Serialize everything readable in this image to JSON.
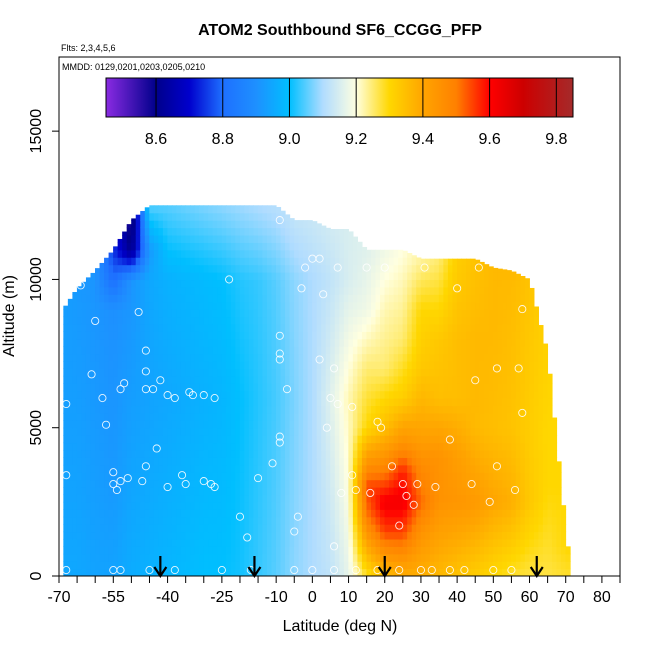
{
  "chart_data": {
    "type": "heatmap",
    "title": "ATOM2 Southbound SF6_CCGG_PFP",
    "subtitle_flights": "Flts: 2,3,4,5,6",
    "subtitle_dates": "MMDD: 0129,0201,0203,0205,0210",
    "xlabel": "Latitude (deg N)",
    "ylabel": "Altitude (m)",
    "xlim": [
      -70,
      85
    ],
    "ylim": [
      0,
      17500
    ],
    "x_ticks": [
      -70,
      -55,
      -40,
      -25,
      -10,
      0,
      10,
      20,
      30,
      40,
      50,
      60,
      70,
      80
    ],
    "x_tick_labels": [
      "-70",
      "-55",
      "-40",
      "-25",
      "-10",
      "0",
      "10",
      "20",
      "30",
      "40",
      "50",
      "60",
      "70",
      "80"
    ],
    "x_minor_ticks": [
      -65,
      -60,
      -50,
      -45,
      -35,
      -30,
      -20,
      -15,
      -5,
      5,
      15,
      25,
      35,
      45,
      55,
      65,
      75,
      85
    ],
    "y_ticks": [
      0,
      5000,
      10000,
      15000
    ],
    "y_tick_labels": [
      "0",
      "5000",
      "10000",
      "15000"
    ],
    "colorbar": {
      "range": [
        8.45,
        9.85
      ],
      "ticks": [
        8.6,
        8.8,
        9.0,
        9.2,
        9.4,
        9.6,
        9.8
      ],
      "tick_labels": [
        "8.6",
        "8.8",
        "9.0",
        "9.2",
        "9.4",
        "9.6",
        "9.8"
      ],
      "dividers": [
        8.6,
        8.8,
        9.0,
        9.2,
        9.4,
        9.6,
        9.8
      ],
      "stops": [
        {
          "v": 8.45,
          "c": "#8a2be2"
        },
        {
          "v": 8.6,
          "c": "#00008b"
        },
        {
          "v": 8.7,
          "c": "#0000cd"
        },
        {
          "v": 8.8,
          "c": "#1e6fff"
        },
        {
          "v": 8.9,
          "c": "#1e90ff"
        },
        {
          "v": 9.0,
          "c": "#00bfff"
        },
        {
          "v": 9.1,
          "c": "#b0dcff"
        },
        {
          "v": 9.2,
          "c": "#ffffe0"
        },
        {
          "v": 9.3,
          "c": "#ffd700"
        },
        {
          "v": 9.4,
          "c": "#ffa500"
        },
        {
          "v": 9.5,
          "c": "#ff8000"
        },
        {
          "v": 9.6,
          "c": "#ff0000"
        },
        {
          "v": 9.7,
          "c": "#cd0000"
        },
        {
          "v": 9.85,
          "c": "#a52a2a"
        }
      ]
    },
    "columns": [
      {
        "x": -68.8,
        "top": 9000,
        "v": [
          [
            0,
            8.95
          ],
          [
            6000,
            8.93
          ],
          [
            9000,
            8.93
          ]
        ]
      },
      {
        "x": -65,
        "top": 9700,
        "v": [
          [
            0,
            8.95
          ],
          [
            6000,
            8.93
          ],
          [
            9700,
            8.92
          ]
        ]
      },
      {
        "x": -60,
        "top": 10300,
        "v": [
          [
            0,
            8.94
          ],
          [
            6000,
            8.92
          ],
          [
            10300,
            8.91
          ]
        ]
      },
      {
        "x": -55,
        "top": 11000,
        "v": [
          [
            0,
            8.94
          ],
          [
            3000,
            8.92
          ],
          [
            6000,
            8.91
          ],
          [
            9000,
            8.9
          ],
          [
            10000,
            8.8
          ],
          [
            11000,
            8.75
          ]
        ]
      },
      {
        "x": -50,
        "top": 12000,
        "v": [
          [
            0,
            8.96
          ],
          [
            6000,
            8.93
          ],
          [
            10000,
            8.91
          ],
          [
            11000,
            8.6
          ],
          [
            12000,
            8.55
          ]
        ]
      },
      {
        "x": -45,
        "top": 12500,
        "v": [
          [
            0,
            8.97
          ],
          [
            6000,
            8.94
          ],
          [
            10000,
            8.95
          ],
          [
            11000,
            8.92
          ],
          [
            12500,
            9.05
          ]
        ]
      },
      {
        "x": -40,
        "top": 12500,
        "v": [
          [
            0,
            8.98
          ],
          [
            6000,
            8.95
          ],
          [
            10000,
            8.97
          ],
          [
            12500,
            9.05
          ]
        ]
      },
      {
        "x": -35,
        "top": 12500,
        "v": [
          [
            0,
            8.99
          ],
          [
            6000,
            8.96
          ],
          [
            10000,
            8.98
          ],
          [
            12500,
            9.06
          ]
        ]
      },
      {
        "x": -30,
        "top": 12500,
        "v": [
          [
            0,
            9.0
          ],
          [
            6000,
            8.97
          ],
          [
            10000,
            8.99
          ],
          [
            12500,
            9.07
          ]
        ]
      },
      {
        "x": -25,
        "top": 12500,
        "v": [
          [
            0,
            9.0
          ],
          [
            6000,
            8.98
          ],
          [
            10000,
            9.0
          ],
          [
            12500,
            9.08
          ]
        ]
      },
      {
        "x": -20,
        "top": 12500,
        "v": [
          [
            0,
            9.01
          ],
          [
            6000,
            9.0
          ],
          [
            10000,
            9.02
          ],
          [
            12500,
            9.09
          ]
        ]
      },
      {
        "x": -15,
        "top": 12500,
        "v": [
          [
            0,
            9.03
          ],
          [
            6000,
            9.02
          ],
          [
            10000,
            9.03
          ],
          [
            12500,
            9.1
          ]
        ]
      },
      {
        "x": -10,
        "top": 12500,
        "v": [
          [
            0,
            9.05
          ],
          [
            6000,
            9.04
          ],
          [
            10000,
            9.05
          ],
          [
            12500,
            9.11
          ]
        ]
      },
      {
        "x": -5,
        "top": 12000,
        "v": [
          [
            0,
            9.08
          ],
          [
            6000,
            9.07
          ],
          [
            10000,
            9.08
          ],
          [
            12000,
            9.12
          ]
        ]
      },
      {
        "x": 0,
        "top": 12000,
        "v": [
          [
            0,
            9.1
          ],
          [
            6000,
            9.1
          ],
          [
            10000,
            9.1
          ],
          [
            12000,
            9.13
          ]
        ]
      },
      {
        "x": 5,
        "top": 11700,
        "v": [
          [
            0,
            9.12
          ],
          [
            6000,
            9.16
          ],
          [
            10000,
            9.12
          ],
          [
            11700,
            9.14
          ]
        ]
      },
      {
        "x": 10,
        "top": 11700,
        "v": [
          [
            0,
            9.17
          ],
          [
            3000,
            9.2
          ],
          [
            6000,
            9.22
          ],
          [
            10000,
            9.15
          ],
          [
            11700,
            9.15
          ]
        ]
      },
      {
        "x": 15,
        "top": 11000,
        "v": [
          [
            0,
            9.28
          ],
          [
            2000,
            9.5
          ],
          [
            3000,
            9.55
          ],
          [
            5000,
            9.3
          ],
          [
            7000,
            9.25
          ],
          [
            9000,
            9.18
          ],
          [
            11000,
            9.16
          ]
        ]
      },
      {
        "x": 20,
        "top": 11000,
        "v": [
          [
            0,
            9.35
          ],
          [
            1500,
            9.55
          ],
          [
            2500,
            9.62
          ],
          [
            3500,
            9.5
          ],
          [
            5000,
            9.35
          ],
          [
            7000,
            9.25
          ],
          [
            9000,
            9.22
          ],
          [
            11000,
            9.18
          ]
        ]
      },
      {
        "x": 25,
        "top": 11000,
        "v": [
          [
            0,
            9.38
          ],
          [
            1500,
            9.55
          ],
          [
            2500,
            9.62
          ],
          [
            3500,
            9.58
          ],
          [
            4500,
            9.45
          ],
          [
            6000,
            9.32
          ],
          [
            8000,
            9.25
          ],
          [
            11000,
            9.2
          ]
        ]
      },
      {
        "x": 30,
        "top": 10700,
        "v": [
          [
            0,
            9.38
          ],
          [
            1500,
            9.45
          ],
          [
            2500,
            9.52
          ],
          [
            3500,
            9.48
          ],
          [
            5000,
            9.4
          ],
          [
            7000,
            9.33
          ],
          [
            9000,
            9.3
          ],
          [
            10700,
            9.23
          ]
        ]
      },
      {
        "x": 35,
        "top": 10700,
        "v": [
          [
            0,
            9.36
          ],
          [
            2500,
            9.45
          ],
          [
            4000,
            9.45
          ],
          [
            6000,
            9.35
          ],
          [
            8000,
            9.33
          ],
          [
            10700,
            9.25
          ]
        ]
      },
      {
        "x": 40,
        "top": 10700,
        "v": [
          [
            0,
            9.34
          ],
          [
            2500,
            9.44
          ],
          [
            4000,
            9.42
          ],
          [
            6000,
            9.35
          ],
          [
            8000,
            9.35
          ],
          [
            10700,
            9.32
          ]
        ]
      },
      {
        "x": 45,
        "top": 10700,
        "v": [
          [
            0,
            9.32
          ],
          [
            2500,
            9.43
          ],
          [
            5000,
            9.36
          ],
          [
            8000,
            9.36
          ],
          [
            10700,
            9.34
          ]
        ]
      },
      {
        "x": 50,
        "top": 10400,
        "v": [
          [
            0,
            9.3
          ],
          [
            2500,
            9.4
          ],
          [
            5000,
            9.35
          ],
          [
            8000,
            9.36
          ],
          [
            10400,
            9.36
          ]
        ]
      },
      {
        "x": 55,
        "top": 10300,
        "v": [
          [
            0,
            9.28
          ],
          [
            2500,
            9.38
          ],
          [
            5000,
            9.34
          ],
          [
            8000,
            9.35
          ],
          [
            10300,
            9.36
          ]
        ]
      },
      {
        "x": 60,
        "top": 10000,
        "v": [
          [
            0,
            9.27
          ],
          [
            2500,
            9.33
          ],
          [
            5000,
            9.32
          ],
          [
            8000,
            9.33
          ],
          [
            10000,
            9.34
          ]
        ]
      },
      {
        "x": 65,
        "top": 7500,
        "v": [
          [
            0,
            9.27
          ],
          [
            3000,
            9.3
          ],
          [
            5000,
            9.3
          ],
          [
            7500,
            9.31
          ]
        ]
      },
      {
        "x": 70.5,
        "top": 1000,
        "v": [
          [
            0,
            9.28
          ],
          [
            1000,
            9.3
          ]
        ]
      }
    ],
    "samples": [
      [
        -68,
        3400
      ],
      [
        -68,
        5800
      ],
      [
        -68,
        200
      ],
      [
        -64,
        9800
      ],
      [
        -61,
        6800
      ],
      [
        -60,
        8600
      ],
      [
        -58,
        6000
      ],
      [
        -57,
        5100
      ],
      [
        -55,
        3500
      ],
      [
        -55,
        3100
      ],
      [
        -54,
        2900
      ],
      [
        -53,
        3200
      ],
      [
        -51,
        3300
      ],
      [
        -55,
        200
      ],
      [
        -53,
        200
      ],
      [
        -53,
        6300
      ],
      [
        -52,
        6500
      ],
      [
        -48,
        8900
      ],
      [
        -47,
        3200
      ],
      [
        -46,
        3700
      ],
      [
        -46,
        6300
      ],
      [
        -46,
        7600
      ],
      [
        -46,
        6900
      ],
      [
        -44,
        6300
      ],
      [
        -45,
        200
      ],
      [
        -43,
        4300
      ],
      [
        -42,
        6600
      ],
      [
        -40,
        6100
      ],
      [
        -40,
        3000
      ],
      [
        -38,
        200
      ],
      [
        -38,
        6000
      ],
      [
        -36,
        3400
      ],
      [
        -35,
        3100
      ],
      [
        -34,
        6200
      ],
      [
        -33,
        6100
      ],
      [
        -30,
        3200
      ],
      [
        -30,
        6100
      ],
      [
        -28,
        3100
      ],
      [
        -27,
        6000
      ],
      [
        -27,
        3000
      ],
      [
        -25,
        200
      ],
      [
        -23,
        10000
      ],
      [
        -20,
        2000
      ],
      [
        -18,
        1300
      ],
      [
        -17,
        200
      ],
      [
        -15,
        3300
      ],
      [
        -11,
        3800
      ],
      [
        -9,
        4700
      ],
      [
        -9,
        4500
      ],
      [
        -9,
        7500
      ],
      [
        -9,
        8100
      ],
      [
        -9,
        7300
      ],
      [
        -9,
        12000
      ],
      [
        -7,
        6300
      ],
      [
        -5,
        200
      ],
      [
        -5,
        1500
      ],
      [
        -4,
        2000
      ],
      [
        -3,
        9700
      ],
      [
        -2,
        10400
      ],
      [
        0,
        10700
      ],
      [
        0,
        200
      ],
      [
        2,
        7300
      ],
      [
        2,
        10700
      ],
      [
        3,
        9500
      ],
      [
        4,
        5000
      ],
      [
        5,
        6000
      ],
      [
        6,
        200
      ],
      [
        6,
        7000
      ],
      [
        6,
        1000
      ],
      [
        7,
        5800
      ],
      [
        7,
        10400
      ],
      [
        8,
        2800
      ],
      [
        11,
        3400
      ],
      [
        11,
        5700
      ],
      [
        12,
        200
      ],
      [
        12,
        2900
      ],
      [
        15,
        10400
      ],
      [
        16,
        2800
      ],
      [
        18,
        200
      ],
      [
        18,
        5200
      ],
      [
        19,
        5000
      ],
      [
        20,
        10400
      ],
      [
        22,
        3700
      ],
      [
        24,
        200
      ],
      [
        24,
        1700
      ],
      [
        25,
        3100
      ],
      [
        26,
        2700
      ],
      [
        28,
        2400
      ],
      [
        29,
        3100
      ],
      [
        30,
        200
      ],
      [
        31,
        10400
      ],
      [
        33,
        200
      ],
      [
        34,
        3000
      ],
      [
        38,
        4600
      ],
      [
        38,
        200
      ],
      [
        40,
        9700
      ],
      [
        42,
        200
      ],
      [
        44,
        3100
      ],
      [
        45,
        6600
      ],
      [
        46,
        10400
      ],
      [
        49,
        2500
      ],
      [
        50,
        200
      ],
      [
        51,
        3700
      ],
      [
        51,
        7000
      ],
      [
        55,
        200
      ],
      [
        56,
        2900
      ],
      [
        58,
        9000
      ],
      [
        58,
        5500
      ],
      [
        57,
        7000
      ]
    ],
    "arrows_x": [
      -42,
      -16,
      20,
      62
    ]
  }
}
